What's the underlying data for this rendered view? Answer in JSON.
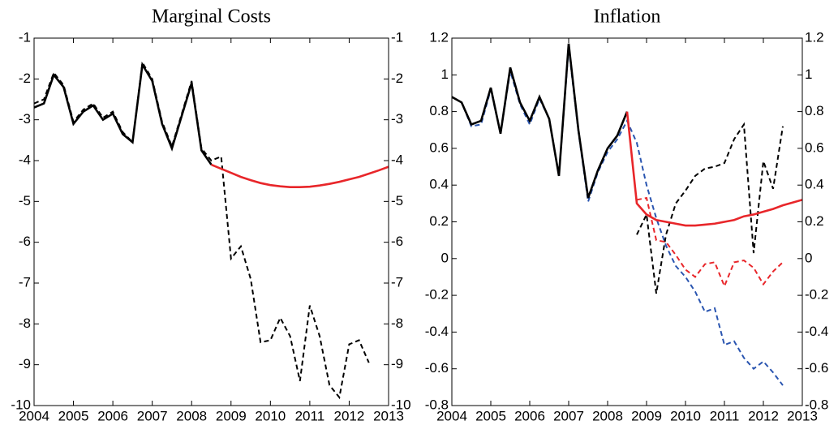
{
  "chart_data": [
    {
      "type": "line",
      "title": "Marginal Costs",
      "xlim": [
        2004,
        2013
      ],
      "xticks": [
        2004,
        2005,
        2006,
        2007,
        2008,
        2009,
        2010,
        2011,
        2012,
        2013
      ],
      "ylim": [
        -10,
        -1
      ],
      "yticks": [
        -10,
        -9,
        -8,
        -7,
        -6,
        -5,
        -4,
        -3,
        -2,
        -1
      ],
      "right_axis_labels": true,
      "series": [
        {
          "color": "#000000",
          "dashed": true,
          "x": [
            2004,
            2004.25,
            2004.5,
            2004.75,
            2005,
            2005.25,
            2005.5,
            2005.75,
            2006,
            2006.25,
            2006.5,
            2006.75,
            2007,
            2007.25,
            2007.5,
            2007.75,
            2008,
            2008.25,
            2008.5,
            2008.75,
            2009,
            2009.25,
            2009.5,
            2009.75,
            2010,
            2010.25,
            2010.5,
            2010.75,
            2011,
            2011.25,
            2011.5,
            2011.75,
            2012,
            2012.25,
            2012.5
          ],
          "values": [
            -2.6,
            -2.5,
            -1.85,
            -2.15,
            -3.05,
            -2.75,
            -2.6,
            -2.95,
            -2.8,
            -3.3,
            -3.55,
            -1.6,
            -2.0,
            -3.05,
            -3.65,
            -2.85,
            -2.05,
            -3.7,
            -4.0,
            -3.9,
            -6.4,
            -6.1,
            -6.9,
            -8.45,
            -8.4,
            -7.85,
            -8.3,
            -9.4,
            -7.55,
            -8.3,
            -9.5,
            -9.8,
            -8.5,
            -8.4,
            -8.95
          ]
        },
        {
          "color": "#000000",
          "dashed": false,
          "x": [
            2004,
            2004.25,
            2004.5,
            2004.75,
            2005,
            2005.25,
            2005.5,
            2005.75,
            2006,
            2006.25,
            2006.5,
            2006.75,
            2007,
            2007.25,
            2007.5,
            2007.75,
            2008,
            2008.25,
            2008.5
          ],
          "values": [
            -2.7,
            -2.6,
            -1.9,
            -2.2,
            -3.1,
            -2.8,
            -2.65,
            -3.0,
            -2.85,
            -3.35,
            -3.55,
            -1.65,
            -2.05,
            -3.1,
            -3.7,
            -2.9,
            -2.1,
            -3.75,
            -4.1
          ]
        },
        {
          "color": "#e8262a",
          "dashed": false,
          "x": [
            2008.5,
            2008.75,
            2009,
            2009.25,
            2009.5,
            2009.75,
            2010,
            2010.25,
            2010.5,
            2010.75,
            2011,
            2011.25,
            2011.5,
            2011.75,
            2012,
            2012.25,
            2012.5,
            2012.75,
            2013
          ],
          "values": [
            -4.1,
            -4.2,
            -4.3,
            -4.4,
            -4.48,
            -4.55,
            -4.6,
            -4.63,
            -4.65,
            -4.65,
            -4.64,
            -4.61,
            -4.57,
            -4.52,
            -4.46,
            -4.4,
            -4.32,
            -4.24,
            -4.15
          ]
        }
      ]
    },
    {
      "type": "line",
      "title": "Inflation",
      "xlim": [
        2004,
        2013
      ],
      "xticks": [
        2004,
        2005,
        2006,
        2007,
        2008,
        2009,
        2010,
        2011,
        2012,
        2013
      ],
      "ylim": [
        -0.8,
        1.2
      ],
      "yticks": [
        -0.8,
        -0.6,
        -0.4,
        -0.2,
        0,
        0.2,
        0.4,
        0.6,
        0.8,
        1,
        1.2
      ],
      "right_axis_labels": true,
      "series": [
        {
          "color": "#2a55b0",
          "dashed": true,
          "x": [
            2004,
            2004.25,
            2004.5,
            2004.75,
            2005,
            2005.25,
            2005.5,
            2005.75,
            2006,
            2006.25,
            2006.5,
            2006.75,
            2007,
            2007.25,
            2007.5,
            2007.75,
            2008,
            2008.25,
            2008.5,
            2008.75,
            2009,
            2009.25,
            2009.5,
            2009.75,
            2010,
            2010.25,
            2010.5,
            2010.75,
            2011,
            2011.25,
            2011.5,
            2011.75,
            2012,
            2012.25,
            2012.5
          ],
          "values": [
            0.88,
            0.85,
            0.72,
            0.73,
            0.92,
            0.68,
            1.02,
            0.84,
            0.73,
            0.87,
            0.76,
            0.45,
            1.15,
            0.69,
            0.31,
            0.47,
            0.58,
            0.65,
            0.75,
            0.63,
            0.4,
            0.22,
            0.07,
            -0.04,
            -0.1,
            -0.18,
            -0.29,
            -0.27,
            -0.47,
            -0.45,
            -0.54,
            -0.6,
            -0.56,
            -0.62,
            -0.69
          ]
        },
        {
          "color": "#000000",
          "dashed": true,
          "x": [
            2008.75,
            2009,
            2009.25,
            2009.5,
            2009.75,
            2010,
            2010.25,
            2010.5,
            2010.75,
            2011,
            2011.25,
            2011.5,
            2011.75,
            2012,
            2012.25,
            2012.5
          ],
          "values": [
            0.13,
            0.24,
            -0.19,
            0.13,
            0.3,
            0.37,
            0.45,
            0.49,
            0.5,
            0.52,
            0.65,
            0.73,
            0.03,
            0.53,
            0.38,
            0.72
          ]
        },
        {
          "color": "#e8262a",
          "dashed": true,
          "x": [
            2008.75,
            2009,
            2009.25,
            2009.5,
            2009.75,
            2010,
            2010.25,
            2010.5,
            2010.75,
            2011,
            2011.25,
            2011.5,
            2011.75,
            2012,
            2012.25,
            2012.5
          ],
          "values": [
            0.32,
            0.33,
            0.1,
            0.09,
            0.02,
            -0.06,
            -0.1,
            -0.03,
            -0.02,
            -0.15,
            -0.02,
            -0.01,
            -0.05,
            -0.14,
            -0.07,
            -0.02
          ]
        },
        {
          "color": "#000000",
          "dashed": false,
          "x": [
            2004,
            2004.25,
            2004.5,
            2004.75,
            2005,
            2005.25,
            2005.5,
            2005.75,
            2006,
            2006.25,
            2006.5,
            2006.75,
            2007,
            2007.25,
            2007.5,
            2007.75,
            2008,
            2008.25,
            2008.5
          ],
          "values": [
            0.88,
            0.85,
            0.73,
            0.75,
            0.93,
            0.68,
            1.04,
            0.85,
            0.75,
            0.88,
            0.76,
            0.45,
            1.17,
            0.7,
            0.33,
            0.48,
            0.6,
            0.67,
            0.8
          ]
        },
        {
          "color": "#e8262a",
          "dashed": false,
          "x": [
            2008.5,
            2008.75,
            2009,
            2009.25,
            2009.5,
            2009.75,
            2010,
            2010.25,
            2010.5,
            2010.75,
            2011,
            2011.25,
            2011.5,
            2011.75,
            2012,
            2012.25,
            2012.5,
            2012.75,
            2013
          ],
          "values": [
            0.8,
            0.3,
            0.24,
            0.21,
            0.2,
            0.19,
            0.18,
            0.18,
            0.185,
            0.19,
            0.2,
            0.21,
            0.23,
            0.24,
            0.255,
            0.27,
            0.29,
            0.305,
            0.32
          ]
        }
      ]
    }
  ]
}
